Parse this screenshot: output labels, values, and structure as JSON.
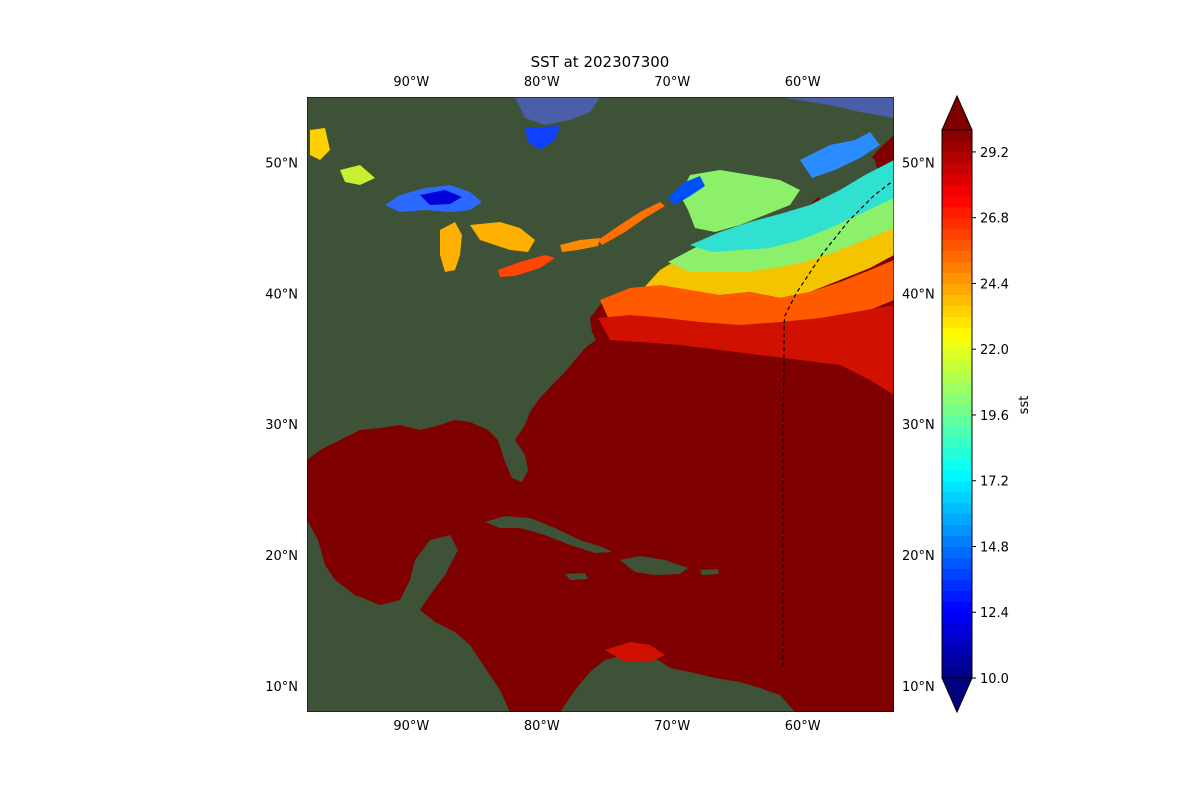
{
  "title": "SST at 202307300",
  "map": {
    "lon_range": [
      -98,
      -53
    ],
    "lat_range": [
      8,
      55
    ],
    "lon_ticks": [
      {
        "value": -90,
        "label": "90°W"
      },
      {
        "value": -80,
        "label": "80°W"
      },
      {
        "value": -70,
        "label": "70°W"
      },
      {
        "value": -60,
        "label": "60°W"
      }
    ],
    "lat_ticks": [
      {
        "value": 10,
        "label": "10°N"
      },
      {
        "value": 20,
        "label": "20°N"
      },
      {
        "value": 30,
        "label": "30°N"
      },
      {
        "value": 40,
        "label": "40°N"
      },
      {
        "value": 50,
        "label": "50°N"
      }
    ],
    "track": [
      [
        -61.5,
        11.5
      ],
      [
        -61.5,
        20
      ],
      [
        -61.5,
        30
      ],
      [
        -61.4,
        38.2
      ],
      [
        -60.5,
        40
      ],
      [
        -58.5,
        43
      ],
      [
        -56.5,
        45.5
      ],
      [
        -54.5,
        47.5
      ],
      [
        -53.2,
        48.5
      ]
    ],
    "land_color": "#3e5238",
    "warm_sea_color": "#7f0000"
  },
  "colorbar": {
    "label": "sst",
    "min": 10.0,
    "max": 30.0,
    "ticks": [
      "10.0",
      "12.4",
      "14.8",
      "17.2",
      "19.6",
      "22.0",
      "24.4",
      "26.8",
      "29.2"
    ],
    "tick_values": [
      10.0,
      12.4,
      14.8,
      17.2,
      19.6,
      22.0,
      24.4,
      26.8,
      29.2
    ],
    "colormap": "jet",
    "extend": "both"
  }
}
